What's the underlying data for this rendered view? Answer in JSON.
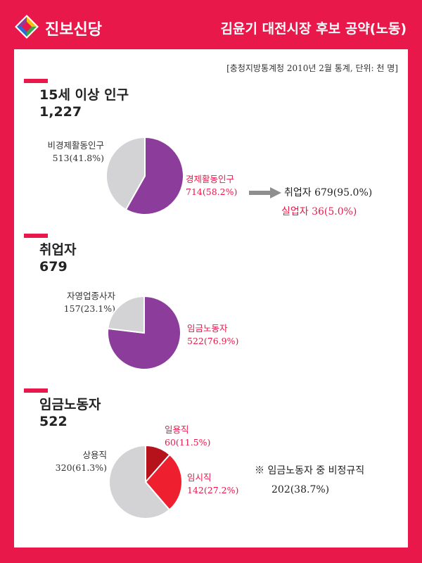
{
  "header": {
    "brand": "진보신당",
    "headline": "김윤기 대전시장 후보 공약(노동)"
  },
  "source_note": "[충청지방통계청 2010년 2월 통계, 단위: 천 명]",
  "colors": {
    "accent": "#e8194a",
    "purple": "#8c3d9b",
    "gray": "#d3d3d5",
    "dark_red": "#b5121b",
    "red": "#ee1f2f"
  },
  "chart_data": [
    {
      "type": "pie",
      "title": "15세 이상 인구",
      "total": "1,227",
      "slices": [
        {
          "name": "경제활동인구",
          "value": 714,
          "label": "714(58.2%)",
          "color": "#8c3d9b"
        },
        {
          "name": "비경제활동인구",
          "value": 513,
          "label": "513(41.8%)",
          "color": "#d3d3d5"
        }
      ],
      "breakdown": [
        {
          "text": "취업자 679(95.0%)",
          "highlight": false
        },
        {
          "text": "실업자 36(5.0%)",
          "highlight": true
        }
      ]
    },
    {
      "type": "pie",
      "title": "취업자",
      "total": "679",
      "slices": [
        {
          "name": "임금노동자",
          "value": 522,
          "label": "522(76.9%)",
          "color": "#8c3d9b"
        },
        {
          "name": "자영업종사자",
          "value": 157,
          "label": "157(23.1%)",
          "color": "#d3d3d5"
        }
      ]
    },
    {
      "type": "pie",
      "title": "임금노동자",
      "total": "522",
      "slices": [
        {
          "name": "일용직",
          "value": 60,
          "label": "60(11.5%)",
          "color": "#b5121b"
        },
        {
          "name": "임시직",
          "value": 142,
          "label": "142(27.2%)",
          "color": "#ee1f2f"
        },
        {
          "name": "상용직",
          "value": 320,
          "label": "320(61.3%)",
          "color": "#d3d3d5"
        }
      ],
      "note": {
        "title": "※ 임금노동자 중 비정규직",
        "value": "202(38.7%)"
      }
    }
  ]
}
